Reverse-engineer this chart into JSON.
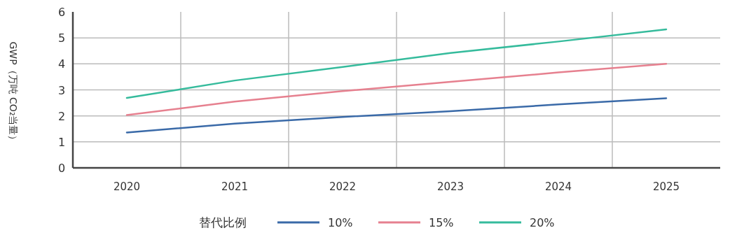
{
  "chart_data": {
    "type": "line",
    "ylabel": "GWP（万吨 CO₂当量）",
    "legend_title": "替代比例",
    "categories": [
      "2020",
      "2021",
      "2022",
      "2023",
      "2024",
      "2025"
    ],
    "series": [
      {
        "name": "10%",
        "color": "#3a6aa8",
        "values": [
          1.36,
          1.7,
          1.96,
          2.18,
          2.44,
          2.68
        ]
      },
      {
        "name": "15%",
        "color": "#e6808f",
        "values": [
          2.03,
          2.55,
          2.95,
          3.31,
          3.67,
          4.0
        ]
      },
      {
        "name": "20%",
        "color": "#35bb9c",
        "values": [
          2.69,
          3.36,
          3.88,
          4.42,
          4.86,
          5.33
        ]
      }
    ],
    "ylim": [
      0,
      6
    ],
    "yticks": [
      0,
      1,
      2,
      3,
      4,
      5,
      6
    ],
    "grid": true,
    "legend": "bottom",
    "marker": "none",
    "line_style": "solid"
  }
}
